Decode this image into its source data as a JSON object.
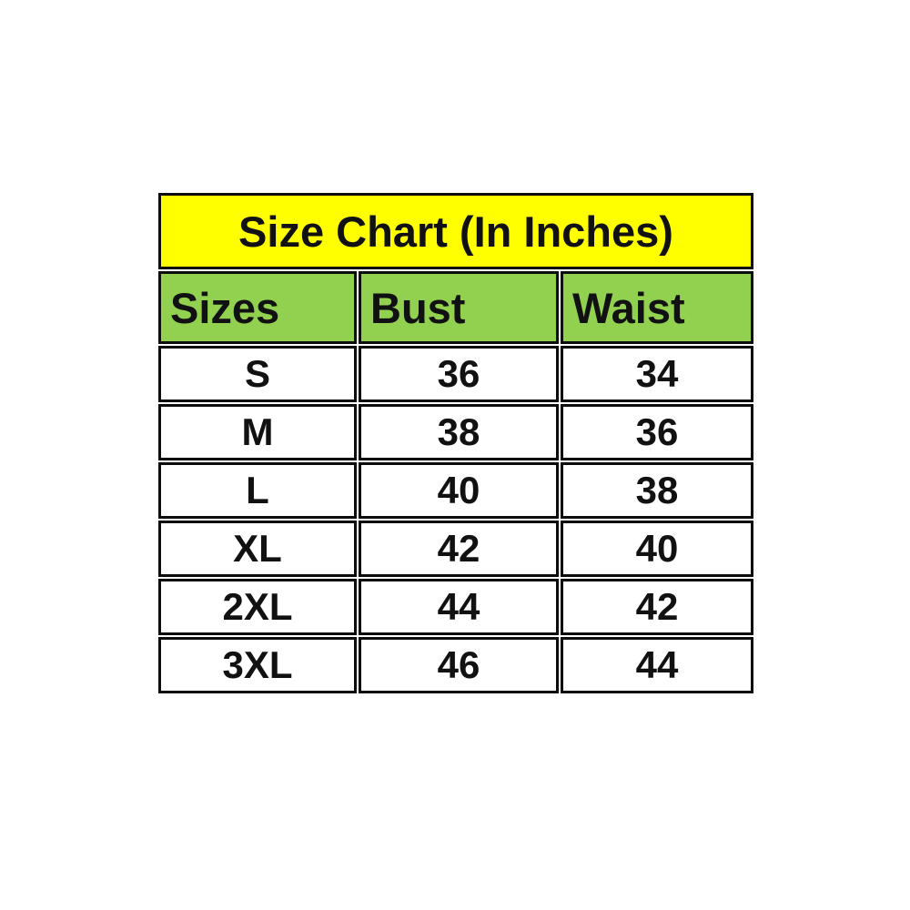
{
  "chart_data": {
    "type": "table",
    "title": "Size Chart (In Inches)",
    "columns": [
      "Sizes",
      "Bust",
      "Waist"
    ],
    "rows": [
      [
        "S",
        "36",
        "34"
      ],
      [
        "M",
        "38",
        "36"
      ],
      [
        "L",
        "40",
        "38"
      ],
      [
        "XL",
        "42",
        "40"
      ],
      [
        "2XL",
        "44",
        "42"
      ],
      [
        "3XL",
        "46",
        "44"
      ]
    ],
    "units": "inches",
    "colors": {
      "title_background": "#ffff00",
      "header_background": "#92d050",
      "cell_background": "#ffffff",
      "border": "#0d0d0d",
      "text": "#111111"
    }
  }
}
